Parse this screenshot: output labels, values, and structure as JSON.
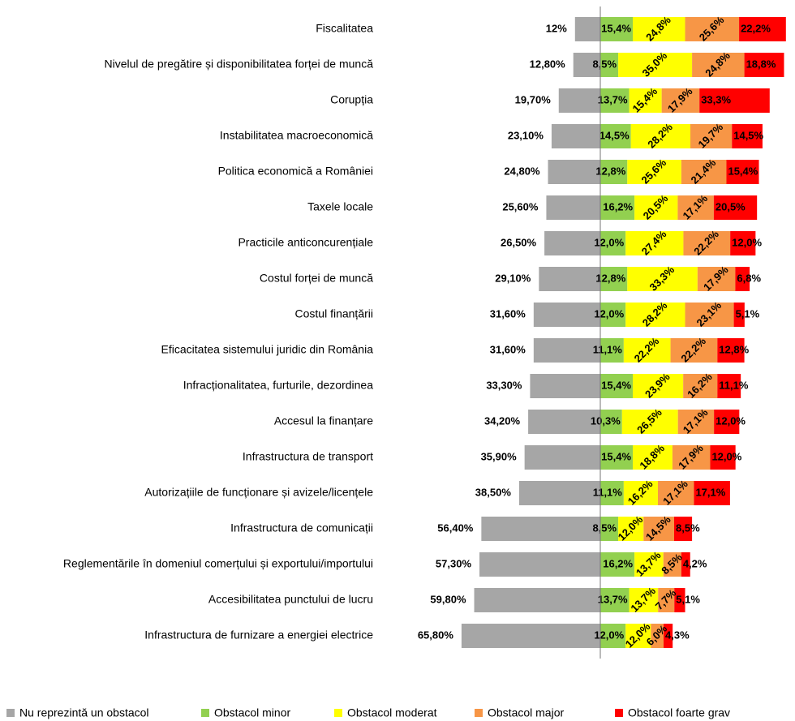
{
  "chart_data": {
    "type": "diverging-bar",
    "categories": [
      "Fiscalitatea",
      "Nivelul de pregătire și disponibilitatea  forței de muncă",
      "Corupția",
      "Instabilitatea macroeconomică",
      "Politica economică  a României",
      "Taxele locale",
      "Practicile anticoncurențiale",
      "Costul forței de muncă",
      "Costul finanțării",
      "Eficacitatea sistemului juridic din România",
      "Infracționalitatea,  furturile, dezordinea",
      "Accesul la finanțare",
      "Infrastructura de transport",
      "Autorizațiile de funcționare și avizele/licențele",
      "Infrastructura de comunicații",
      "Reglementările în domeniul comerțului și exportului/importului",
      "Accesibilitatea punctului de lucru",
      "Infrastructura de furnizare  a energiei electrice"
    ],
    "series": [
      {
        "name": "Nu reprezintă un obstacol",
        "color": "#a6a6a6",
        "values": [
          12,
          12.8,
          19.7,
          23.1,
          24.8,
          25.6,
          26.5,
          29.1,
          31.6,
          31.6,
          33.3,
          34.2,
          35.9,
          38.5,
          56.4,
          57.3,
          59.8,
          65.8
        ],
        "value_labels": [
          "12%",
          "12,80%",
          "19,70%",
          "23,10%",
          "24,80%",
          "25,60%",
          "26,50%",
          "29,10%",
          "31,60%",
          "31,60%",
          "33,30%",
          "34,20%",
          "35,90%",
          "38,50%",
          "56,40%",
          "57,30%",
          "59,80%",
          "65,80%"
        ]
      },
      {
        "name": "Obstacol minor",
        "color": "#92d050",
        "values": [
          15.4,
          8.5,
          13.7,
          14.5,
          12.8,
          16.2,
          12.0,
          12.8,
          12.0,
          11.1,
          15.4,
          10.3,
          15.4,
          11.1,
          8.5,
          16.2,
          13.7,
          12.0
        ],
        "value_labels": [
          "15,4%",
          "8,5%",
          "13,7%",
          "14,5%",
          "12,8%",
          "16,2%",
          "12,0%",
          "12,8%",
          "12,0%",
          "11,1%",
          "15,4%",
          "10,3%",
          "15,4%",
          "11,1%",
          "8,5%",
          "16,2%",
          "13,7%",
          "12,0%"
        ]
      },
      {
        "name": "Obstacol moderat",
        "color": "#ffff00",
        "values": [
          24.8,
          35.0,
          15.4,
          28.2,
          25.6,
          20.5,
          27.4,
          33.3,
          28.2,
          22.2,
          23.9,
          26.5,
          18.8,
          16.2,
          12.0,
          13.7,
          13.7,
          12.0
        ],
        "value_labels": [
          "24,8%",
          "35,0%",
          "15,4%",
          "28,2%",
          "25,6%",
          "20,5%",
          "27,4%",
          "33,3%",
          "28,2%",
          "22,2%",
          "23,9%",
          "26,5%",
          "18,8%",
          "16,2%",
          "12,0%",
          "13,7%",
          "13,7%",
          "12,0%"
        ]
      },
      {
        "name": "Obstacol major",
        "color": "#f79646",
        "values": [
          25.6,
          24.8,
          17.9,
          19.7,
          21.4,
          17.1,
          22.2,
          17.9,
          23.1,
          22.2,
          16.2,
          17.1,
          17.9,
          17.1,
          14.5,
          8.5,
          7.7,
          6.0
        ],
        "value_labels": [
          "25,6%",
          "24,8%",
          "17,9%",
          "19,7%",
          "21,4%",
          "17,1%",
          "22,2%",
          "17,9%",
          "23,1%",
          "22,2%",
          "16,2%",
          "17,1%",
          "17,9%",
          "17,1%",
          "14,5%",
          "8,5%",
          "7,7%",
          "6,0%"
        ]
      },
      {
        "name": "Obstacol foarte grav",
        "color": "#ff0000",
        "values": [
          22.2,
          18.8,
          33.3,
          14.5,
          15.4,
          20.5,
          12.0,
          6.8,
          5.1,
          12.8,
          11.1,
          12.0,
          12.0,
          17.1,
          8.5,
          4.2,
          5.1,
          4.3
        ],
        "value_labels": [
          "22,2%",
          "18,8%",
          "33,3%",
          "14,5%",
          "15,4%",
          "20,5%",
          "12,0%",
          "6,8%",
          "5,1%",
          "12,8%",
          "11,1%",
          "12,0%",
          "12,0%",
          "17,1%",
          "8,5%",
          "4,2%",
          "5,1%",
          "4,3%"
        ]
      }
    ]
  }
}
